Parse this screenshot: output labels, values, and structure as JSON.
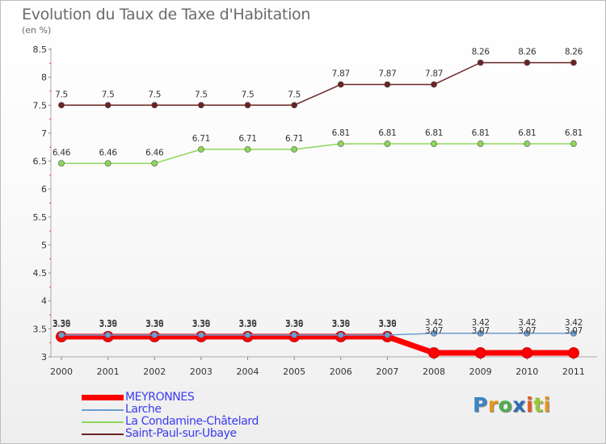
{
  "chart_data": {
    "type": "line",
    "title": "Evolution du Taux de Taxe d'Habitation",
    "subtitle": "(en %)",
    "xlabel": "",
    "ylabel": "",
    "x": [
      "2000",
      "2001",
      "2002",
      "2003",
      "2004",
      "2005",
      "2006",
      "2007",
      "2008",
      "2009",
      "2010",
      "2011"
    ],
    "ylim": [
      3,
      8.5
    ],
    "yticks": [
      "3",
      "3.5",
      "4",
      "4.5",
      "5",
      "5.5",
      "6",
      "6.5",
      "7",
      "7.5",
      "8",
      "8.5"
    ],
    "grid": false,
    "legend_position": "bottom-left",
    "series": [
      {
        "name": "MEYRONNES",
        "color": "#ff0000",
        "values": [
          3.36,
          3.36,
          3.36,
          3.36,
          3.36,
          3.36,
          3.36,
          3.36,
          3.07,
          3.07,
          3.07,
          3.07
        ],
        "labels": [
          "3.36",
          "3.36",
          "3.36",
          "3.36",
          "3.36",
          "3.36",
          "3.36",
          "3.36",
          "3.07",
          "3.07",
          "3.07",
          "3.07"
        ]
      },
      {
        "name": "Larche",
        "color": "#6d9dd6",
        "values": [
          3.39,
          3.39,
          3.39,
          3.39,
          3.39,
          3.39,
          3.39,
          3.39,
          3.42,
          3.42,
          3.42,
          3.42
        ],
        "labels": [
          "3.39",
          "3.39",
          "3.39",
          "3.39",
          "3.39",
          "3.39",
          "3.39",
          "3.39",
          "3.42",
          "3.42",
          "3.42",
          "3.42"
        ]
      },
      {
        "name": "La Condamine-Châtelard",
        "color": "#8cd65a",
        "values": [
          6.46,
          6.46,
          6.46,
          6.71,
          6.71,
          6.71,
          6.81,
          6.81,
          6.81,
          6.81,
          6.81,
          6.81
        ],
        "labels": [
          "6.46",
          "6.46",
          "6.46",
          "6.71",
          "6.71",
          "6.71",
          "6.81",
          "6.81",
          "6.81",
          "6.81",
          "6.81",
          "6.81"
        ]
      },
      {
        "name": "Saint-Paul-sur-Ubaye",
        "color": "#6a2424",
        "values": [
          7.5,
          7.5,
          7.5,
          7.5,
          7.5,
          7.5,
          7.87,
          7.87,
          7.87,
          8.26,
          8.26,
          8.26
        ],
        "labels": [
          "7.5",
          "7.5",
          "7.5",
          "7.5",
          "7.5",
          "7.5",
          "7.87",
          "7.87",
          "7.87",
          "8.26",
          "8.26",
          "8.26"
        ]
      }
    ]
  },
  "brand": {
    "letters": [
      "P",
      "r",
      "o",
      "x",
      "i",
      "t",
      "i"
    ],
    "colors": [
      "#3a86c8",
      "#e8961e",
      "#4caf50",
      "#2f6fb3",
      "#e85c20",
      "#9bc93a",
      "#e8961e"
    ]
  }
}
